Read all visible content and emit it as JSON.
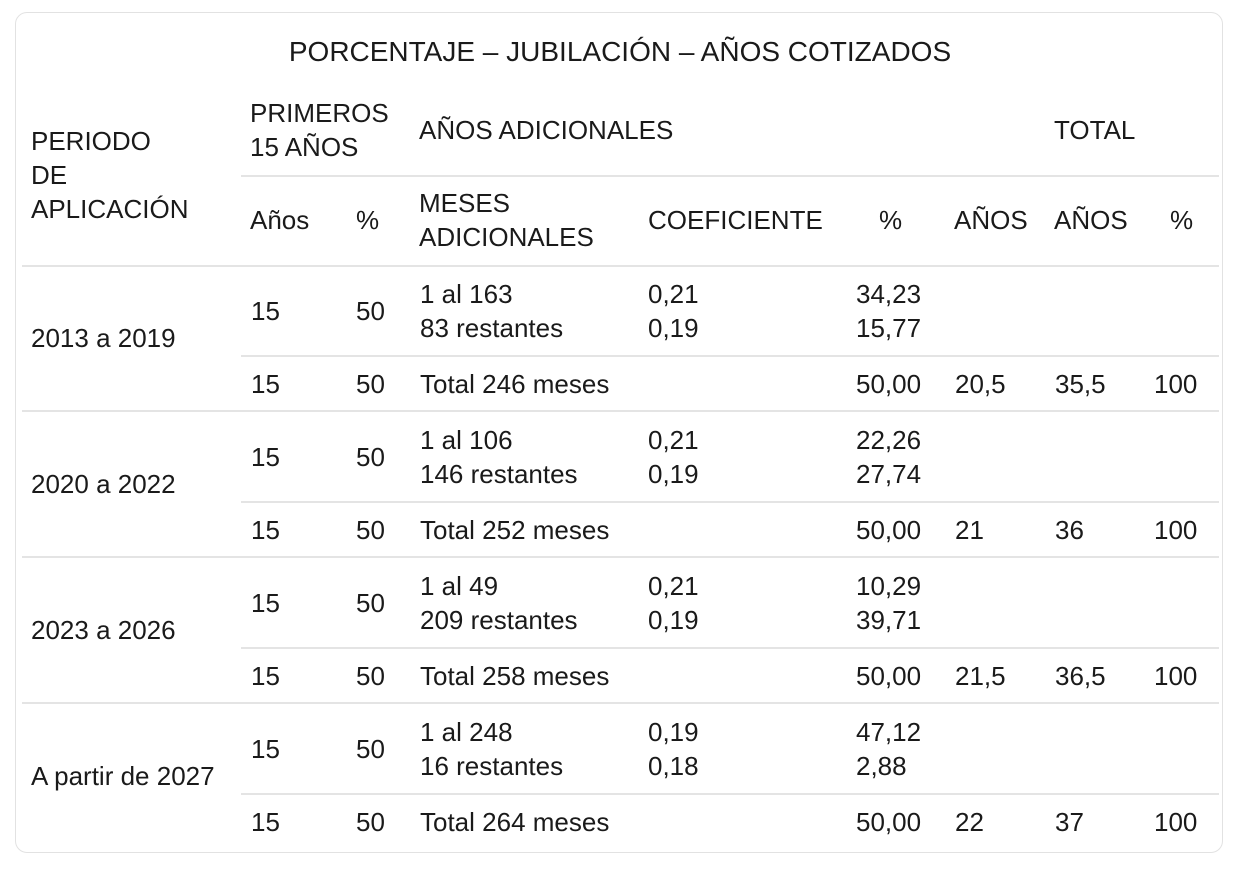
{
  "title": "PORCENTAJE – JUBILACIÓN – AÑOS COTIZADOS",
  "header": {
    "periodo": "PERIODO\nDE\nAPLICACIÓN",
    "primeros": "PRIMEROS\n15 AÑOS",
    "adicionales": "AÑOS ADICIONALES",
    "total": "TOTAL",
    "anos": "Años",
    "pct": "%",
    "meses_adicionales": "MESES\nADICIONALES",
    "coeficiente": "COEFICIENTE",
    "pct2": "%",
    "anos_adic": "AÑOS",
    "anos_total": "AÑOS",
    "pct_total": "%"
  },
  "periods": [
    {
      "label": "2013 a 2019",
      "detail": {
        "anos": "15",
        "pct": "50",
        "meses": "1 al 163\n83 restantes",
        "coef": "0,21\n0,19",
        "porc": "34,23\n15,77"
      },
      "total": {
        "anos": "15",
        "pct": "50",
        "meses": "Total 246 meses",
        "porc": "50,00",
        "anos_adic": "20,5",
        "anos_total": "35,5",
        "pct_total": "100"
      }
    },
    {
      "label": "2020 a 2022",
      "detail": {
        "anos": "15",
        "pct": "50",
        "meses": "1 al 106\n146 restantes",
        "coef": "0,21\n0,19",
        "porc": "22,26\n27,74"
      },
      "total": {
        "anos": "15",
        "pct": "50",
        "meses": "Total 252 meses",
        "porc": "50,00",
        "anos_adic": "21",
        "anos_total": "36",
        "pct_total": "100"
      }
    },
    {
      "label": "2023 a 2026",
      "detail": {
        "anos": "15",
        "pct": "50",
        "meses": "1 al 49\n209 restantes",
        "coef": "0,21\n0,19",
        "porc": "10,29\n39,71"
      },
      "total": {
        "anos": "15",
        "pct": "50",
        "meses": "Total 258 meses",
        "porc": "50,00",
        "anos_adic": "21,5",
        "anos_total": "36,5",
        "pct_total": "100"
      }
    },
    {
      "label": "A partir de 2027",
      "detail": {
        "anos": "15",
        "pct": "50",
        "meses": "1 al 248\n16 restantes",
        "coef": "0,19\n0,18",
        "porc": "47,12\n2,88"
      },
      "total": {
        "anos": "15",
        "pct": "50",
        "meses": "Total 264 meses",
        "porc": "50,00",
        "anos_adic": "22",
        "anos_total": "37",
        "pct_total": "100"
      }
    }
  ]
}
